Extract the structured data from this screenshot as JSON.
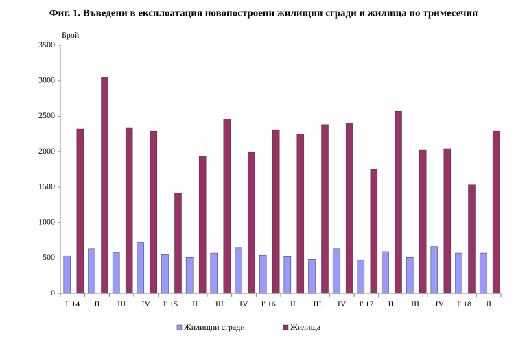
{
  "chart_data": {
    "type": "bar",
    "title": "Фиг. 1. Въведени в експлоатация новопостроени жилищни сгради и жилища по тримесечия",
    "y_label": "Брой",
    "categories": [
      "I' 14",
      "II",
      "III",
      "IV",
      "I' 15",
      "II",
      "III",
      "IV",
      "I' 16",
      "II",
      "III",
      "IV",
      "I' 17",
      "II",
      "III",
      "IV",
      "I' 18",
      "II"
    ],
    "series": [
      {
        "name": "Жилищни сгради",
        "color": "#9999ff",
        "values": [
          530,
          630,
          580,
          720,
          550,
          510,
          570,
          640,
          540,
          520,
          480,
          630,
          465,
          590,
          510,
          660,
          570,
          570
        ]
      },
      {
        "name": "Жилища",
        "color": "#993366",
        "values": [
          2320,
          3050,
          2330,
          2290,
          1410,
          1940,
          2460,
          1990,
          2310,
          2250,
          2380,
          2400,
          1750,
          2570,
          2020,
          2040,
          1530,
          2290
        ]
      }
    ],
    "ylim": [
      0,
      3500
    ],
    "yticks": [
      0,
      500,
      1000,
      1500,
      2000,
      2500,
      3000,
      3500
    ],
    "grid": false,
    "legend": "bottom"
  }
}
